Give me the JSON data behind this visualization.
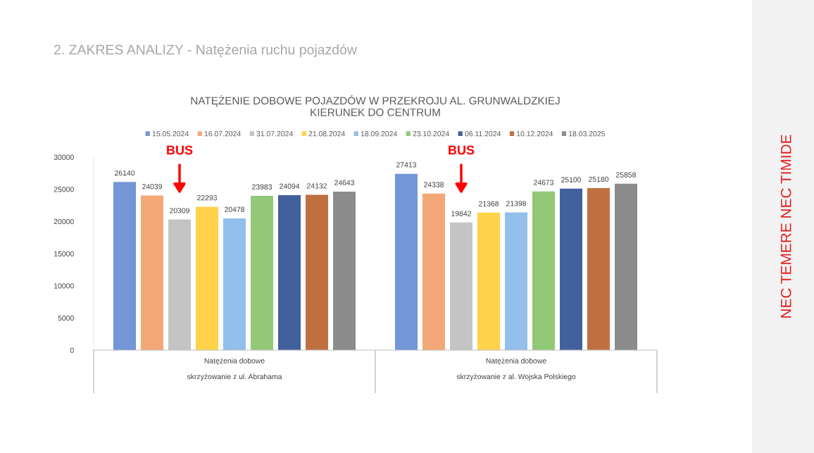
{
  "chart_data": {
    "type": "bar",
    "title": "NATĘŻENIE DOBOWE POJAZDÓW W PRZEKROJU AL. GRUNWALDZKIEJ\nKIERUNEK DO CENTRUM",
    "categories": [
      "Natężenia dobowe\n\nskrzyżowanie z ul. Abrahama",
      "Natężenia dobowe\n\nskrzyżowanie z al. Wojska Polskiego"
    ],
    "series": [
      {
        "name": "15.05.2024",
        "color": "#7396d8",
        "values": [
          26140,
          27413
        ]
      },
      {
        "name": "16.07.2024",
        "color": "#f4a878",
        "values": [
          24039,
          24338
        ]
      },
      {
        "name": "31.07.2024",
        "color": "#c4c4c4",
        "values": [
          20309,
          19842
        ]
      },
      {
        "name": "21.08.2024",
        "color": "#ffd24a",
        "values": [
          22293,
          21368
        ]
      },
      {
        "name": "18.09.2024",
        "color": "#92c0ea",
        "values": [
          20478,
          21398
        ]
      },
      {
        "name": "23.10.2024",
        "color": "#92c878",
        "values": [
          23983,
          24673
        ]
      },
      {
        "name": "06.11.2024",
        "color": "#42609c",
        "values": [
          24094,
          25100
        ]
      },
      {
        "name": "10.12.2024",
        "color": "#c07040",
        "values": [
          24132,
          25180
        ]
      },
      {
        "name": "18.03.2025",
        "color": "#8c8c8c",
        "values": [
          24643,
          25858
        ]
      }
    ],
    "ylim": [
      0,
      30000
    ],
    "yticks": [
      0,
      5000,
      10000,
      15000,
      20000,
      25000,
      30000
    ],
    "data_labels": true,
    "grid": false,
    "legend": "top",
    "annotations": [
      "2. ZAKRES ANALIZY - Natężenia ruchu pojazdów",
      "BUS",
      "BUS",
      "NEC TEMERE NEC TIMIDE"
    ]
  }
}
